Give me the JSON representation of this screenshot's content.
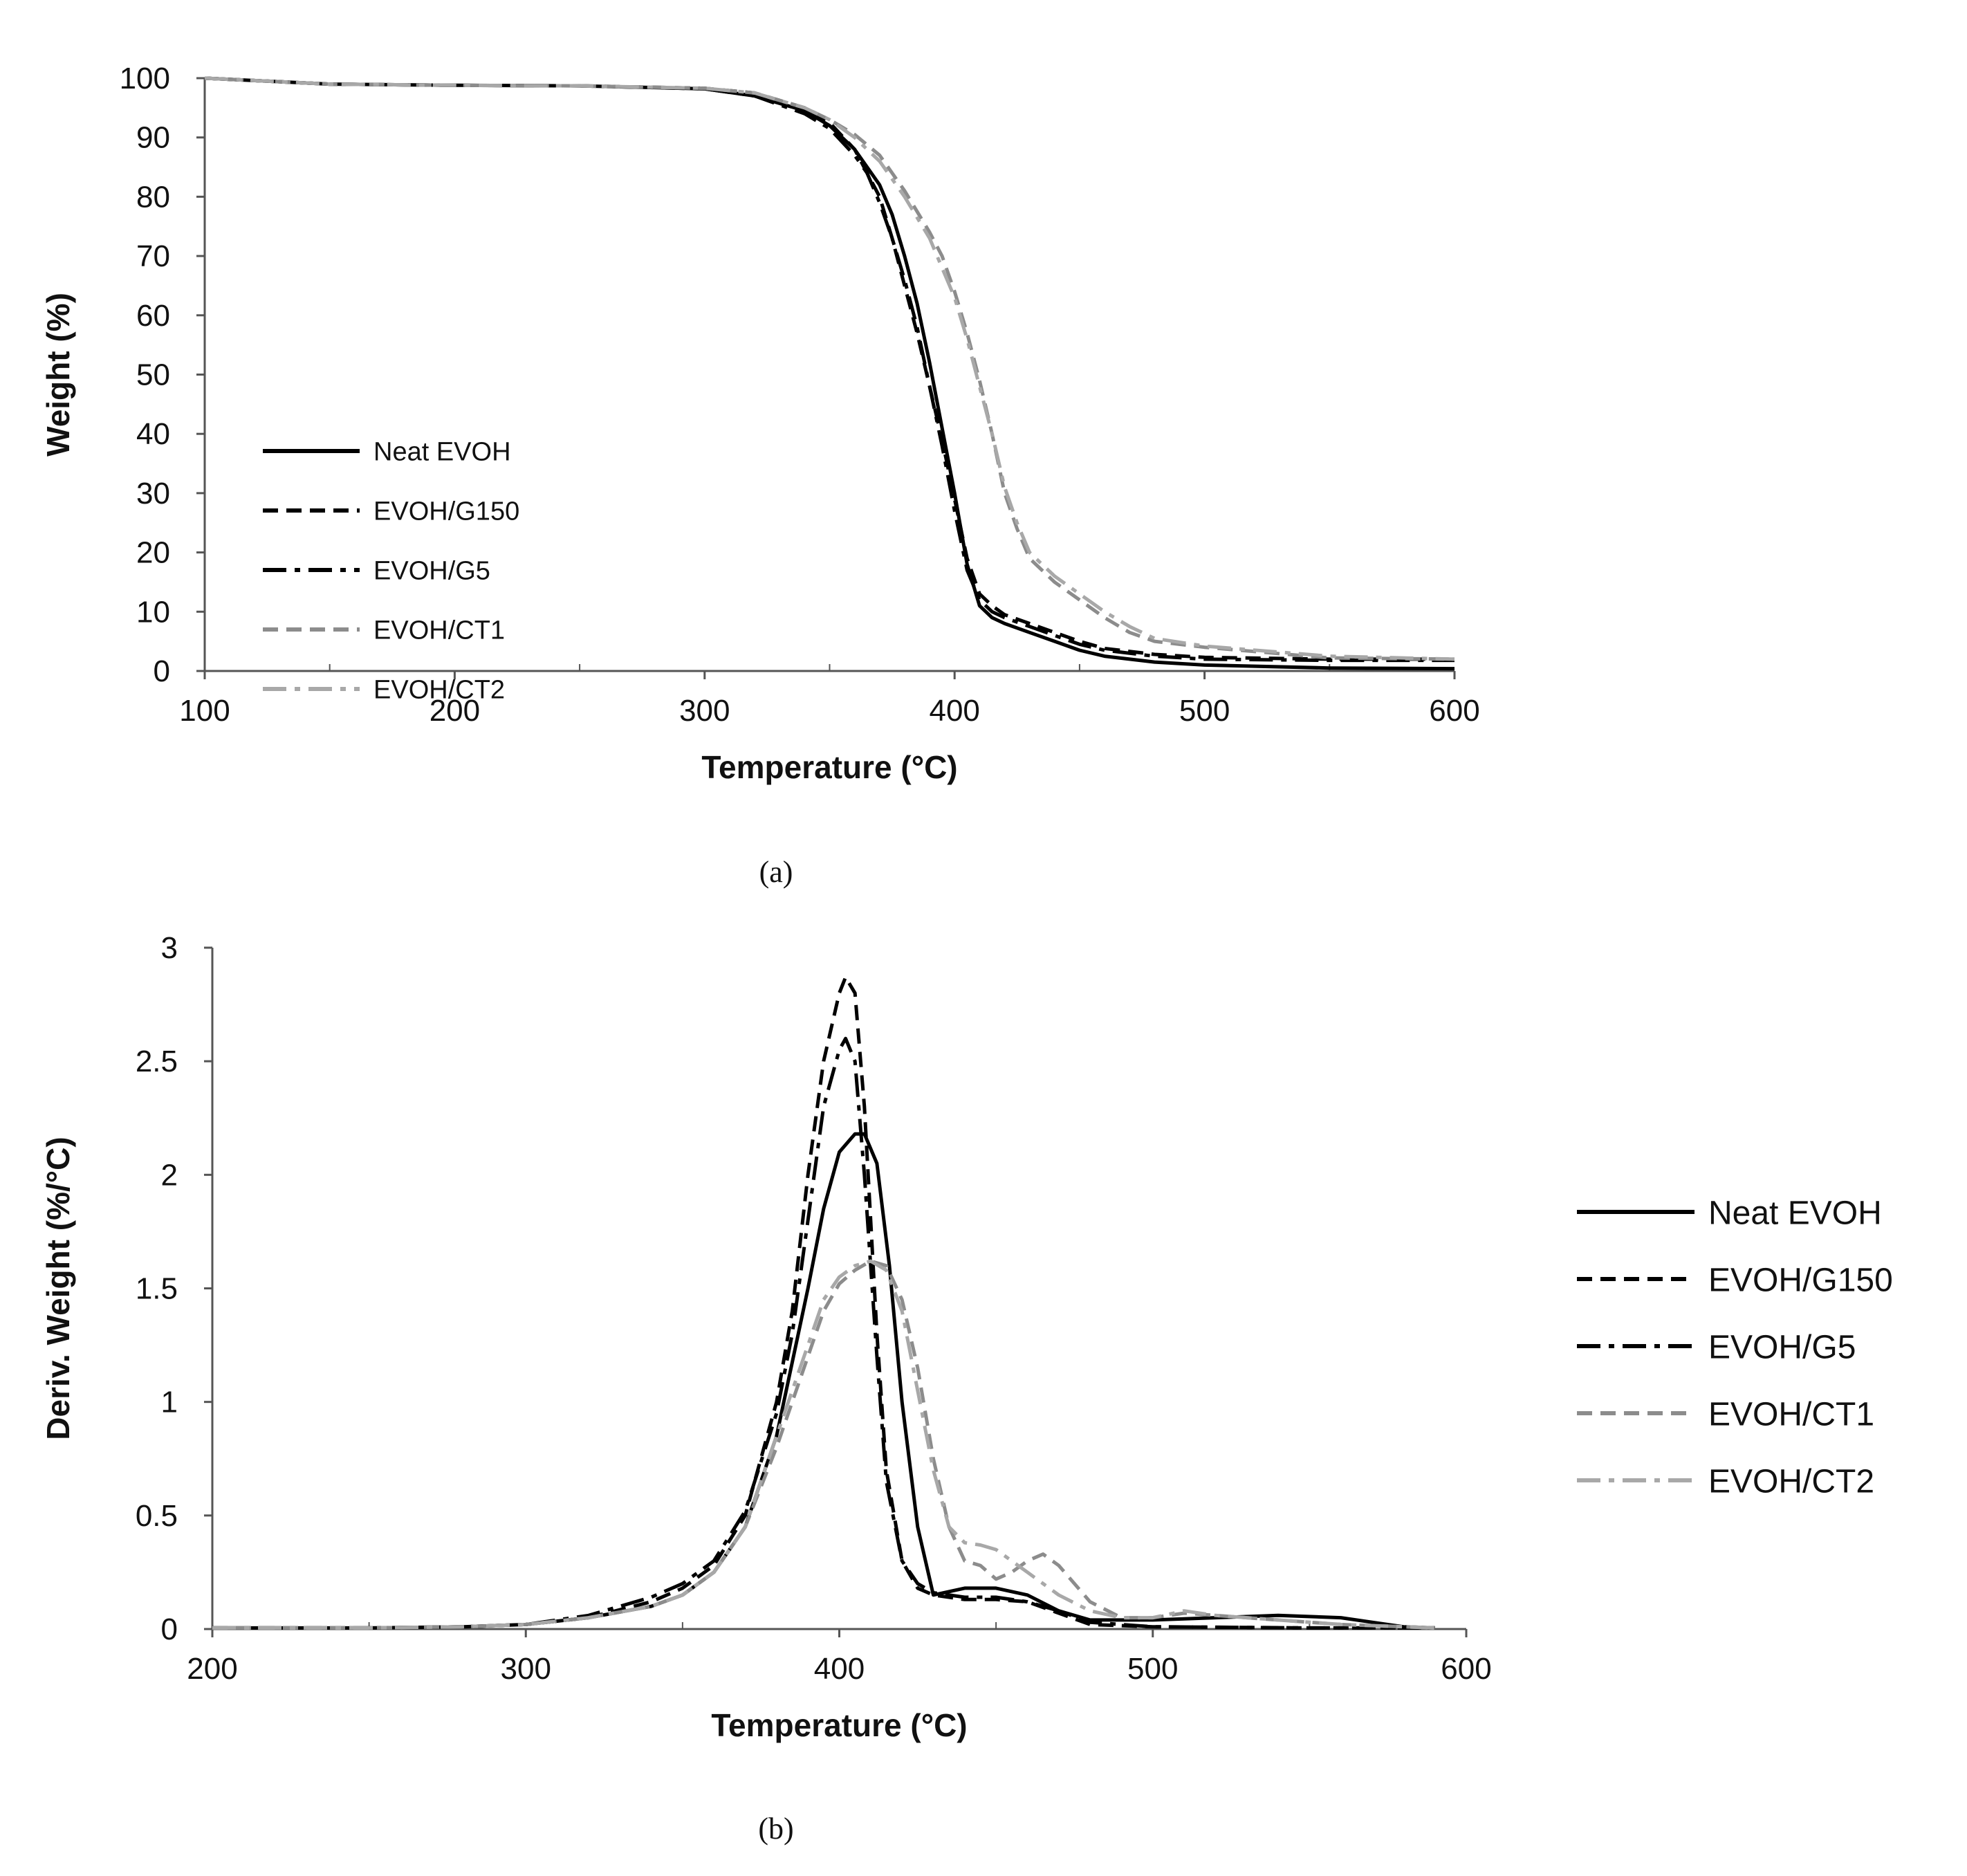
{
  "chart_data": [
    {
      "type": "line",
      "panel": "a",
      "caption": "(a)",
      "title": "",
      "xlabel": "Temperature (°C)",
      "ylabel": "Weight (%)",
      "xlim": [
        100,
        600
      ],
      "ylim": [
        0,
        100
      ],
      "xticks": [
        "100",
        "200",
        "300",
        "400",
        "500",
        "600"
      ],
      "yticks": [
        "0",
        "10",
        "20",
        "30",
        "40",
        "50",
        "60",
        "70",
        "80",
        "90",
        "100"
      ],
      "grid": false,
      "legend_position": "lower-left",
      "series": [
        {
          "name": "Neat EVOH",
          "color": "#000000",
          "style": "solid",
          "x": [
            100,
            150,
            200,
            250,
            300,
            320,
            340,
            350,
            360,
            370,
            375,
            380,
            385,
            390,
            395,
            400,
            405,
            410,
            415,
            420,
            430,
            440,
            450,
            460,
            480,
            500,
            550,
            600
          ],
          "y": [
            100,
            99,
            98.8,
            98.7,
            98.2,
            97,
            94.5,
            92,
            88,
            82,
            77,
            70,
            62,
            52,
            41,
            30,
            18,
            11,
            9,
            8,
            6.5,
            5,
            3.5,
            2.5,
            1.5,
            1,
            0.5,
            0.4
          ]
        },
        {
          "name": "EVOH/G150",
          "color": "#000000",
          "style": "dash",
          "x": [
            100,
            150,
            200,
            250,
            300,
            320,
            340,
            350,
            360,
            370,
            375,
            380,
            385,
            390,
            395,
            400,
            405,
            410,
            415,
            420,
            430,
            440,
            450,
            460,
            480,
            500,
            550,
            600
          ],
          "y": [
            100,
            99,
            98.8,
            98.7,
            98.3,
            97.5,
            95,
            92.5,
            88,
            80,
            73,
            65,
            57,
            48,
            39,
            29,
            19,
            13,
            11,
            9.5,
            8,
            6.5,
            5,
            3.8,
            2.8,
            2.3,
            2,
            2
          ]
        },
        {
          "name": "EVOH/G5",
          "color": "#000000",
          "style": "dashdot",
          "x": [
            100,
            150,
            200,
            250,
            300,
            320,
            340,
            350,
            360,
            365,
            370,
            375,
            380,
            385,
            390,
            395,
            400,
            405,
            410,
            415,
            420,
            430,
            440,
            450,
            460,
            480,
            500,
            550,
            600
          ],
          "y": [
            100,
            99,
            98.8,
            98.7,
            98.2,
            97,
            94,
            91.5,
            87,
            84,
            79,
            73,
            66,
            58,
            48,
            38,
            27,
            17,
            12,
            10,
            9,
            7.5,
            6,
            4.5,
            3.5,
            2.5,
            2,
            1.8,
            1.8
          ]
        },
        {
          "name": "EVOH/CT1",
          "color": "#8c8c8c",
          "style": "dash",
          "x": [
            100,
            150,
            200,
            250,
            300,
            320,
            340,
            350,
            360,
            370,
            380,
            390,
            395,
            400,
            405,
            410,
            415,
            420,
            425,
            430,
            440,
            450,
            460,
            470,
            480,
            500,
            550,
            600
          ],
          "y": [
            100,
            99,
            98.8,
            98.7,
            98.3,
            97.5,
            95,
            93,
            90.5,
            87,
            81,
            74,
            70,
            64,
            57,
            49,
            40,
            30,
            24,
            19,
            15,
            12,
            9,
            6.5,
            5,
            4,
            2.2,
            2
          ]
        },
        {
          "name": "EVOH/CT2",
          "color": "#a8a8a8",
          "style": "dashdot",
          "x": [
            100,
            150,
            200,
            250,
            300,
            320,
            340,
            350,
            360,
            370,
            380,
            390,
            395,
            400,
            405,
            410,
            415,
            420,
            425,
            430,
            440,
            450,
            460,
            470,
            480,
            500,
            550,
            600
          ],
          "y": [
            100,
            99,
            98.8,
            98.7,
            98.3,
            97.5,
            95,
            93,
            90,
            86,
            80,
            73,
            68,
            63,
            56,
            48,
            40,
            31,
            25,
            20,
            16,
            13,
            10,
            7.5,
            5.5,
            4.2,
            2.5,
            2
          ]
        }
      ]
    },
    {
      "type": "line",
      "panel": "b",
      "caption": "(b)",
      "title": "",
      "xlabel": "Temperature (°C)",
      "ylabel": "Deriv. Weight (%/°C)",
      "xlim": [
        200,
        600
      ],
      "ylim": [
        0,
        3
      ],
      "xticks": [
        "200",
        "300",
        "400",
        "500",
        "600"
      ],
      "yticks": [
        "0",
        "0.5",
        "1",
        "1.5",
        "2",
        "2.5",
        "3"
      ],
      "grid": false,
      "legend_position": "right",
      "series": [
        {
          "name": "Neat EVOH",
          "color": "#000000",
          "style": "solid",
          "x": [
            200,
            250,
            280,
            300,
            320,
            340,
            350,
            360,
            370,
            380,
            390,
            395,
            400,
            405,
            408,
            412,
            416,
            420,
            425,
            430,
            440,
            450,
            460,
            470,
            480,
            490,
            500,
            520,
            540,
            560,
            570,
            580,
            590
          ],
          "y": [
            0.005,
            0.005,
            0.01,
            0.02,
            0.05,
            0.1,
            0.15,
            0.25,
            0.45,
            0.85,
            1.5,
            1.85,
            2.1,
            2.18,
            2.18,
            2.05,
            1.6,
            1.0,
            0.45,
            0.15,
            0.18,
            0.18,
            0.15,
            0.08,
            0.04,
            0.04,
            0.04,
            0.05,
            0.06,
            0.05,
            0.03,
            0.01,
            0.005
          ]
        },
        {
          "name": "EVOH/G150",
          "color": "#000000",
          "style": "dash",
          "x": [
            200,
            250,
            280,
            300,
            320,
            340,
            350,
            360,
            370,
            380,
            385,
            390,
            395,
            400,
            402,
            405,
            408,
            412,
            415,
            420,
            425,
            430,
            440,
            450,
            460,
            470,
            480,
            500,
            550,
            590
          ],
          "y": [
            0.005,
            0.005,
            0.01,
            0.02,
            0.05,
            0.12,
            0.18,
            0.28,
            0.5,
            1.0,
            1.4,
            2.0,
            2.5,
            2.8,
            2.87,
            2.8,
            2.3,
            1.3,
            0.7,
            0.3,
            0.18,
            0.15,
            0.13,
            0.13,
            0.12,
            0.07,
            0.02,
            0.01,
            0.005,
            0.005
          ]
        },
        {
          "name": "EVOH/G5",
          "color": "#000000",
          "style": "dashdot",
          "x": [
            200,
            250,
            280,
            300,
            320,
            340,
            350,
            360,
            370,
            380,
            385,
            390,
            395,
            400,
            402,
            405,
            408,
            412,
            415,
            420,
            425,
            430,
            440,
            450,
            460,
            470,
            480,
            500,
            550,
            590
          ],
          "y": [
            0.005,
            0.005,
            0.01,
            0.02,
            0.06,
            0.14,
            0.2,
            0.3,
            0.52,
            0.95,
            1.3,
            1.8,
            2.3,
            2.55,
            2.6,
            2.5,
            2.0,
            1.2,
            0.65,
            0.3,
            0.2,
            0.16,
            0.14,
            0.14,
            0.12,
            0.08,
            0.03,
            0.01,
            0.005,
            0.005
          ]
        },
        {
          "name": "EVOH/CT1",
          "color": "#8c8c8c",
          "style": "dash",
          "x": [
            200,
            250,
            280,
            300,
            320,
            340,
            350,
            360,
            370,
            380,
            390,
            395,
            400,
            405,
            410,
            415,
            420,
            425,
            430,
            435,
            440,
            445,
            450,
            455,
            460,
            465,
            470,
            480,
            490,
            500,
            510,
            520,
            540,
            560,
            580,
            590
          ],
          "y": [
            0.005,
            0.005,
            0.01,
            0.02,
            0.05,
            0.1,
            0.15,
            0.25,
            0.45,
            0.8,
            1.2,
            1.4,
            1.52,
            1.58,
            1.62,
            1.6,
            1.45,
            1.15,
            0.75,
            0.45,
            0.3,
            0.28,
            0.22,
            0.25,
            0.3,
            0.33,
            0.28,
            0.12,
            0.05,
            0.05,
            0.07,
            0.06,
            0.04,
            0.02,
            0.01,
            0.005
          ]
        },
        {
          "name": "EVOH/CT2",
          "color": "#a8a8a8",
          "style": "dashdot",
          "x": [
            200,
            250,
            280,
            300,
            320,
            340,
            350,
            360,
            370,
            380,
            390,
            395,
            400,
            405,
            410,
            415,
            420,
            425,
            430,
            435,
            440,
            445,
            450,
            455,
            460,
            465,
            470,
            480,
            490,
            500,
            510,
            520,
            540,
            560,
            580,
            590
          ],
          "y": [
            0.005,
            0.005,
            0.01,
            0.02,
            0.05,
            0.1,
            0.15,
            0.25,
            0.45,
            0.85,
            1.25,
            1.45,
            1.55,
            1.6,
            1.62,
            1.58,
            1.4,
            1.05,
            0.7,
            0.45,
            0.38,
            0.37,
            0.35,
            0.3,
            0.25,
            0.2,
            0.15,
            0.08,
            0.05,
            0.05,
            0.08,
            0.06,
            0.04,
            0.02,
            0.01,
            0.005
          ]
        }
      ]
    }
  ]
}
